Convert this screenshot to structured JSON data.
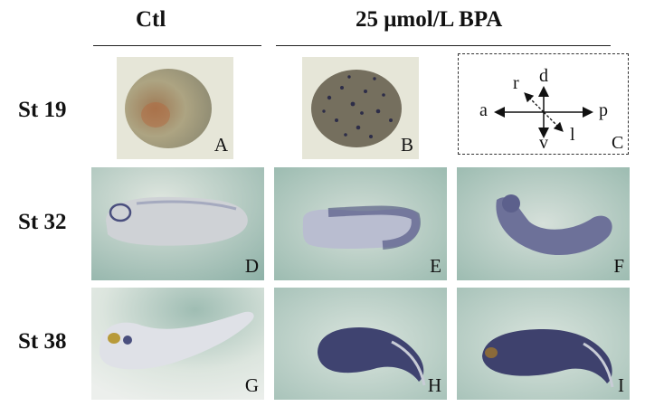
{
  "headers": {
    "control": "Ctl",
    "treatment": "25 μmol/L BPA"
  },
  "stages": [
    "St 19",
    "St 32",
    "St 38"
  ],
  "panels": [
    "A",
    "B",
    "C",
    "D",
    "E",
    "F",
    "G",
    "H",
    "I"
  ],
  "axis_labels": {
    "anterior": "a",
    "posterior": "p",
    "dorsal": "d",
    "ventral": "v",
    "right": "r",
    "left": "l"
  },
  "colors": {
    "panel_bg_pale": "#dfe4d9",
    "panel_bg_teal": "#8fb2a8",
    "stain": "#3c3f72",
    "embryo": "#b0a785"
  }
}
